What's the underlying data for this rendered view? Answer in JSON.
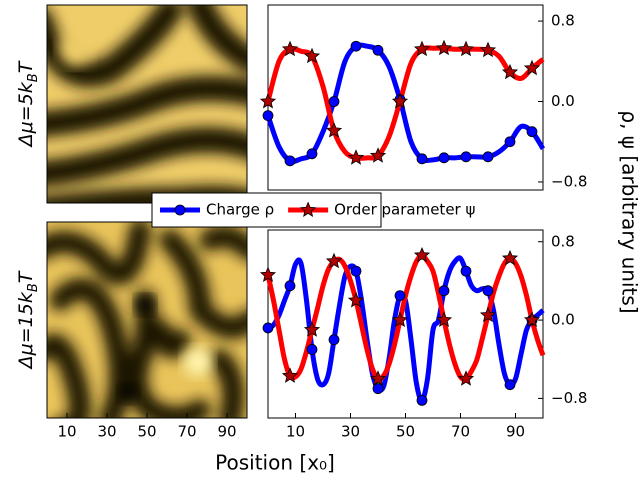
{
  "chart_data": [
    {
      "type": "line",
      "panel_label": {
        "main": "Δμ=5k",
        "sub": "B",
        "end": "T"
      },
      "ylabel": "ρ, ψ [arbitrary units]",
      "marker_every": 8,
      "x": [
        0,
        4,
        8,
        12,
        16,
        20,
        24,
        28,
        32,
        36,
        40,
        44,
        48,
        52,
        56,
        60,
        64,
        68,
        72,
        76,
        80,
        84,
        88,
        92,
        96,
        100
      ],
      "series": [
        {
          "name": "Charge ρ",
          "color": "#0000ff",
          "marker": "circle",
          "values": [
            -0.14,
            -0.45,
            -0.59,
            -0.57,
            -0.52,
            -0.3,
            0.0,
            0.4,
            0.55,
            0.55,
            0.51,
            0.35,
            0.02,
            -0.4,
            -0.57,
            -0.58,
            -0.56,
            -0.56,
            -0.55,
            -0.55,
            -0.55,
            -0.5,
            -0.4,
            -0.25,
            -0.3,
            -0.47
          ]
        },
        {
          "name": "Order parameter ψ",
          "color": "#ff0000",
          "marker": "star",
          "values": [
            0.0,
            0.4,
            0.52,
            0.5,
            0.45,
            0.15,
            -0.29,
            -0.5,
            -0.56,
            -0.56,
            -0.54,
            -0.35,
            0.0,
            0.38,
            0.52,
            0.53,
            0.53,
            0.52,
            0.52,
            0.52,
            0.51,
            0.45,
            0.29,
            0.23,
            0.33,
            0.42
          ]
        }
      ],
      "xlim": [
        0,
        100
      ],
      "ylim": [
        -0.88,
        0.96
      ],
      "yticks": [
        {
          "value": -0.8,
          "label": "−0.8"
        },
        {
          "value": 0,
          "label": "0.0"
        },
        0.8
      ]
    },
    {
      "type": "line",
      "panel_label": {
        "main": "Δμ=15k",
        "sub": "B",
        "end": "T"
      },
      "xlabel": "Position [x₀]",
      "marker_every": 8,
      "x": [
        0,
        2,
        4,
        6,
        8,
        10,
        12,
        14,
        16,
        18,
        20,
        22,
        24,
        26,
        28,
        30,
        32,
        34,
        36,
        38,
        40,
        42,
        44,
        46,
        48,
        50,
        52,
        54,
        56,
        58,
        60,
        62,
        64,
        66,
        68,
        70,
        72,
        74,
        76,
        78,
        80,
        82,
        84,
        86,
        88,
        90,
        92,
        94,
        96,
        98,
        100
      ],
      "series": [
        {
          "color": "#0000ff",
          "marker": "circle",
          "values": [
            -0.08,
            -0.05,
            0.05,
            0.2,
            0.35,
            0.57,
            0.58,
            0.2,
            -0.3,
            -0.6,
            -0.66,
            -0.55,
            -0.2,
            0.15,
            0.45,
            0.55,
            0.5,
            0.2,
            -0.2,
            -0.55,
            -0.7,
            -0.68,
            -0.4,
            0.0,
            0.25,
            0.2,
            -0.2,
            -0.65,
            -0.82,
            -0.6,
            -0.1,
            0.0,
            0.3,
            0.5,
            0.6,
            0.63,
            0.5,
            0.35,
            0.3,
            0.32,
            0.3,
            0.1,
            -0.25,
            -0.55,
            -0.66,
            -0.6,
            -0.35,
            -0.1,
            0.0,
            0.05,
            0.1
          ]
        },
        {
          "color": "#ff0000",
          "marker": "star",
          "values": [
            0.46,
            0.2,
            -0.1,
            -0.4,
            -0.57,
            -0.58,
            -0.5,
            -0.32,
            -0.1,
            0.12,
            0.35,
            0.52,
            0.6,
            0.62,
            0.55,
            0.4,
            0.2,
            -0.05,
            -0.3,
            -0.5,
            -0.6,
            -0.57,
            -0.45,
            -0.25,
            0.0,
            0.25,
            0.45,
            0.6,
            0.66,
            0.6,
            0.5,
            0.27,
            0.0,
            -0.25,
            -0.45,
            -0.58,
            -0.6,
            -0.52,
            -0.4,
            -0.18,
            0.05,
            0.28,
            0.45,
            0.58,
            0.63,
            0.58,
            0.45,
            0.25,
            0.0,
            -0.2,
            -0.36
          ]
        }
      ],
      "xlim": [
        0,
        100
      ],
      "xticks": [
        10,
        30,
        50,
        70,
        90
      ],
      "ylim": [
        -1.0,
        0.92
      ],
      "yticks": [
        {
          "value": -0.8,
          "label": "−0.8"
        },
        {
          "value": 0,
          "label": "0.0"
        },
        0.8
      ]
    }
  ]
}
